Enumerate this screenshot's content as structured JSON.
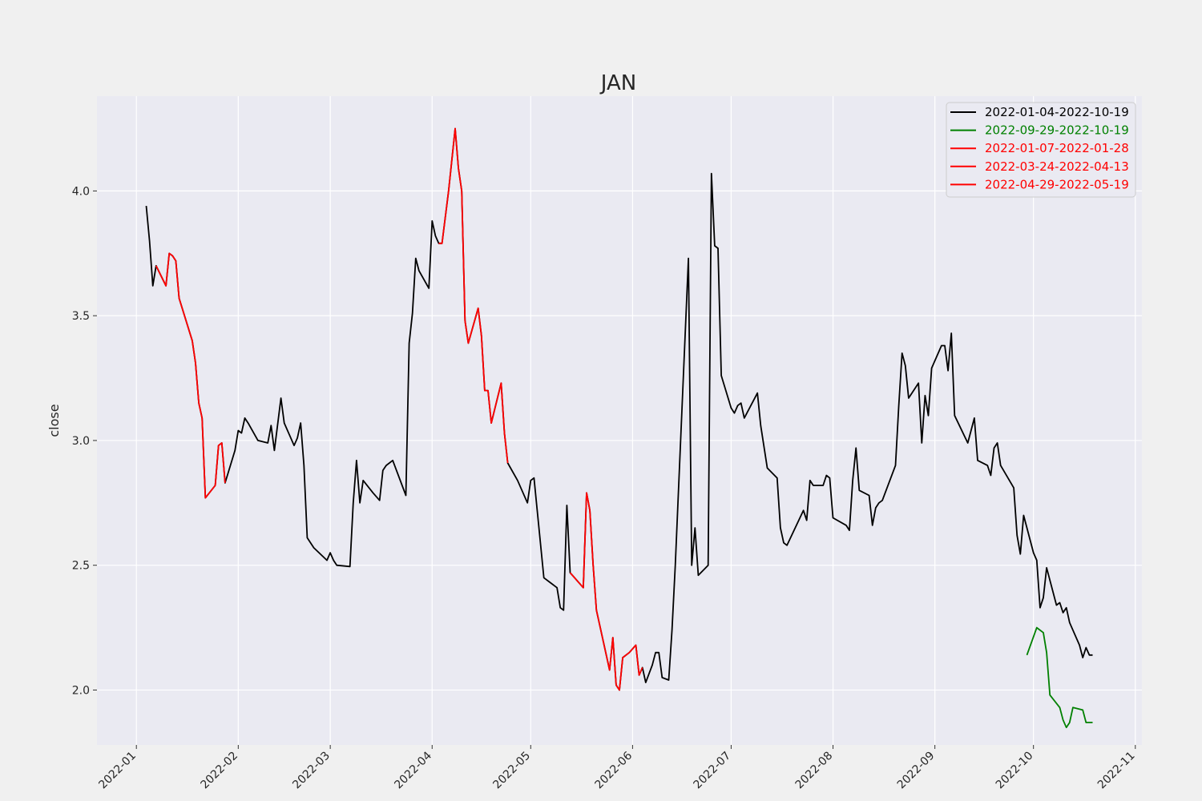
{
  "chart_data": {
    "type": "line",
    "title": "JAN",
    "xlabel": "",
    "ylabel": "close",
    "xlim": [
      "2021-12-20",
      "2022-11-03"
    ],
    "ylim": [
      1.78,
      4.38
    ],
    "x_ticks": [
      "2022-01",
      "2022-02",
      "2022-03",
      "2022-04",
      "2022-05",
      "2022-06",
      "2022-07",
      "2022-08",
      "2022-09",
      "2022-10",
      "2022-11"
    ],
    "y_ticks": [
      2.0,
      2.5,
      3.0,
      3.5,
      4.0
    ],
    "grid": true,
    "legend_position": "top-right",
    "colors": {
      "plot_bg": "#eaeaf2",
      "page_bg": "#f0f0f0",
      "grid": "#ffffff",
      "black": "#000000",
      "green": "#008000",
      "red": "#ff0000"
    },
    "series": [
      {
        "name": "2022-01-04-2022-10-19",
        "color": "#000000",
        "points": [
          [
            "2022-01-04",
            3.94
          ],
          [
            "2022-01-05",
            3.8
          ],
          [
            "2022-01-06",
            3.62
          ],
          [
            "2022-01-07",
            3.7
          ],
          [
            "2022-01-10",
            3.62
          ],
          [
            "2022-01-11",
            3.75
          ],
          [
            "2022-01-12",
            3.74
          ],
          [
            "2022-01-13",
            3.72
          ],
          [
            "2022-01-14",
            3.57
          ],
          [
            "2022-01-18",
            3.4
          ],
          [
            "2022-01-19",
            3.31
          ],
          [
            "2022-01-20",
            3.15
          ],
          [
            "2022-01-21",
            3.09
          ],
          [
            "2022-01-22",
            2.77
          ],
          [
            "2022-01-25",
            2.82
          ],
          [
            "2022-01-26",
            2.98
          ],
          [
            "2022-01-27",
            2.99
          ],
          [
            "2022-01-28",
            2.83
          ],
          [
            "2022-01-31",
            2.96
          ],
          [
            "2022-02-01",
            3.04
          ],
          [
            "2022-02-02",
            3.03
          ],
          [
            "2022-02-03",
            3.09
          ],
          [
            "2022-02-04",
            3.07
          ],
          [
            "2022-02-07",
            3.0
          ],
          [
            "2022-02-10",
            2.99
          ],
          [
            "2022-02-11",
            3.06
          ],
          [
            "2022-02-12",
            2.96
          ],
          [
            "2022-02-14",
            3.17
          ],
          [
            "2022-02-15",
            3.07
          ],
          [
            "2022-02-18",
            2.98
          ],
          [
            "2022-02-19",
            3.01
          ],
          [
            "2022-02-20",
            3.07
          ],
          [
            "2022-02-21",
            2.9
          ],
          [
            "2022-02-22",
            2.61
          ],
          [
            "2022-02-24",
            2.57
          ],
          [
            "2022-02-28",
            2.52
          ],
          [
            "2022-03-01",
            2.55
          ],
          [
            "2022-03-02",
            2.52
          ],
          [
            "2022-03-03",
            2.5
          ],
          [
            "2022-03-07",
            2.495
          ],
          [
            "2022-03-08",
            2.75
          ],
          [
            "2022-03-09",
            2.92
          ],
          [
            "2022-03-10",
            2.75
          ],
          [
            "2022-03-11",
            2.84
          ],
          [
            "2022-03-14",
            2.79
          ],
          [
            "2022-03-16",
            2.76
          ],
          [
            "2022-03-17",
            2.88
          ],
          [
            "2022-03-18",
            2.9
          ],
          [
            "2022-03-20",
            2.92
          ],
          [
            "2022-03-24",
            2.78
          ],
          [
            "2022-03-25",
            3.39
          ],
          [
            "2022-03-26",
            3.51
          ],
          [
            "2022-03-27",
            3.73
          ],
          [
            "2022-03-28",
            3.68
          ],
          [
            "2022-03-31",
            3.61
          ],
          [
            "2022-04-01",
            3.88
          ],
          [
            "2022-04-02",
            3.82
          ],
          [
            "2022-04-03",
            3.79
          ],
          [
            "2022-04-04",
            3.79
          ],
          [
            "2022-04-06",
            4.0
          ],
          [
            "2022-04-08",
            4.25
          ],
          [
            "2022-04-09",
            4.09
          ],
          [
            "2022-04-10",
            4.0
          ],
          [
            "2022-04-11",
            3.48
          ],
          [
            "2022-04-12",
            3.39
          ],
          [
            "2022-04-15",
            3.53
          ],
          [
            "2022-04-16",
            3.42
          ],
          [
            "2022-04-17",
            3.2
          ],
          [
            "2022-04-18",
            3.2
          ],
          [
            "2022-04-19",
            3.07
          ],
          [
            "2022-04-22",
            3.23
          ],
          [
            "2022-04-23",
            3.03
          ],
          [
            "2022-04-24",
            2.91
          ],
          [
            "2022-04-27",
            2.84
          ],
          [
            "2022-04-30",
            2.75
          ],
          [
            "2022-05-01",
            2.84
          ],
          [
            "2022-05-02",
            2.85
          ],
          [
            "2022-05-05",
            2.45
          ],
          [
            "2022-05-07",
            2.43
          ],
          [
            "2022-05-09",
            2.41
          ],
          [
            "2022-05-10",
            2.33
          ],
          [
            "2022-05-11",
            2.32
          ],
          [
            "2022-05-12",
            2.74
          ],
          [
            "2022-05-13",
            2.47
          ],
          [
            "2022-05-17",
            2.41
          ],
          [
            "2022-05-18",
            2.79
          ],
          [
            "2022-05-19",
            2.72
          ],
          [
            "2022-05-20",
            2.5
          ],
          [
            "2022-05-21",
            2.32
          ],
          [
            "2022-05-24",
            2.14
          ],
          [
            "2022-05-25",
            2.08
          ],
          [
            "2022-05-26",
            2.21
          ],
          [
            "2022-05-27",
            2.02
          ],
          [
            "2022-05-28",
            2.0
          ],
          [
            "2022-05-29",
            2.13
          ],
          [
            "2022-05-31",
            2.15
          ],
          [
            "2022-06-02",
            2.18
          ],
          [
            "2022-06-03",
            2.06
          ],
          [
            "2022-06-04",
            2.09
          ],
          [
            "2022-06-05",
            2.03
          ],
          [
            "2022-06-07",
            2.1
          ],
          [
            "2022-06-08",
            2.15
          ],
          [
            "2022-06-09",
            2.15
          ],
          [
            "2022-06-10",
            2.05
          ],
          [
            "2022-06-12",
            2.04
          ],
          [
            "2022-06-13",
            2.24
          ],
          [
            "2022-06-14",
            2.5
          ],
          [
            "2022-06-18",
            3.73
          ],
          [
            "2022-06-19",
            2.5
          ],
          [
            "2022-06-20",
            2.65
          ],
          [
            "2022-06-21",
            2.46
          ],
          [
            "2022-06-24",
            2.5
          ],
          [
            "2022-06-25",
            4.07
          ],
          [
            "2022-06-26",
            3.78
          ],
          [
            "2022-06-27",
            3.77
          ],
          [
            "2022-06-28",
            3.26
          ],
          [
            "2022-07-01",
            3.13
          ],
          [
            "2022-07-02",
            3.11
          ],
          [
            "2022-07-03",
            3.14
          ],
          [
            "2022-07-04",
            3.15
          ],
          [
            "2022-07-05",
            3.09
          ],
          [
            "2022-07-09",
            3.19
          ],
          [
            "2022-07-10",
            3.06
          ],
          [
            "2022-07-12",
            2.89
          ],
          [
            "2022-07-15",
            2.85
          ],
          [
            "2022-07-16",
            2.65
          ],
          [
            "2022-07-17",
            2.59
          ],
          [
            "2022-07-18",
            2.58
          ],
          [
            "2022-07-23",
            2.72
          ],
          [
            "2022-07-24",
            2.68
          ],
          [
            "2022-07-25",
            2.84
          ],
          [
            "2022-07-26",
            2.82
          ],
          [
            "2022-07-29",
            2.82
          ],
          [
            "2022-07-30",
            2.86
          ],
          [
            "2022-07-31",
            2.85
          ],
          [
            "2022-08-01",
            2.69
          ],
          [
            "2022-08-05",
            2.66
          ],
          [
            "2022-08-06",
            2.64
          ],
          [
            "2022-08-07",
            2.84
          ],
          [
            "2022-08-08",
            2.97
          ],
          [
            "2022-08-09",
            2.8
          ],
          [
            "2022-08-12",
            2.78
          ],
          [
            "2022-08-13",
            2.66
          ],
          [
            "2022-08-14",
            2.73
          ],
          [
            "2022-08-15",
            2.75
          ],
          [
            "2022-08-16",
            2.76
          ],
          [
            "2022-08-20",
            2.9
          ],
          [
            "2022-08-21",
            3.14
          ],
          [
            "2022-08-22",
            3.35
          ],
          [
            "2022-08-23",
            3.3
          ],
          [
            "2022-08-24",
            3.17
          ],
          [
            "2022-08-27",
            3.23
          ],
          [
            "2022-08-28",
            2.99
          ],
          [
            "2022-08-29",
            3.18
          ],
          [
            "2022-08-30",
            3.1
          ],
          [
            "2022-08-31",
            3.29
          ],
          [
            "2022-09-03",
            3.38
          ],
          [
            "2022-09-04",
            3.38
          ],
          [
            "2022-09-05",
            3.28
          ],
          [
            "2022-09-06",
            3.43
          ],
          [
            "2022-09-07",
            3.1
          ],
          [
            "2022-09-11",
            2.99
          ],
          [
            "2022-09-12",
            3.04
          ],
          [
            "2022-09-13",
            3.09
          ],
          [
            "2022-09-14",
            2.92
          ],
          [
            "2022-09-17",
            2.9
          ],
          [
            "2022-09-18",
            2.86
          ],
          [
            "2022-09-19",
            2.97
          ],
          [
            "2022-09-20",
            2.99
          ],
          [
            "2022-09-21",
            2.9
          ],
          [
            "2022-09-25",
            2.81
          ],
          [
            "2022-09-26",
            2.62
          ],
          [
            "2022-09-27",
            2.545
          ],
          [
            "2022-09-28",
            2.7
          ],
          [
            "2022-10-01",
            2.55
          ],
          [
            "2022-10-02",
            2.52
          ],
          [
            "2022-10-03",
            2.33
          ],
          [
            "2022-10-04",
            2.37
          ],
          [
            "2022-10-05",
            2.49
          ],
          [
            "2022-10-08",
            2.34
          ],
          [
            "2022-10-09",
            2.35
          ],
          [
            "2022-10-10",
            2.31
          ],
          [
            "2022-10-11",
            2.33
          ],
          [
            "2022-10-12",
            2.27
          ],
          [
            "2022-10-15",
            2.18
          ],
          [
            "2022-10-16",
            2.13
          ],
          [
            "2022-10-17",
            2.17
          ],
          [
            "2022-10-18",
            2.14
          ],
          [
            "2022-10-19",
            2.14
          ]
        ]
      },
      {
        "name": "2022-09-29-2022-10-19",
        "color": "#008000",
        "points": [
          [
            "2022-09-29",
            2.14
          ],
          [
            "2022-10-02",
            2.25
          ],
          [
            "2022-10-04",
            2.23
          ],
          [
            "2022-10-05",
            2.15
          ],
          [
            "2022-10-06",
            1.98
          ],
          [
            "2022-10-09",
            1.93
          ],
          [
            "2022-10-10",
            1.88
          ],
          [
            "2022-10-11",
            1.85
          ],
          [
            "2022-10-12",
            1.87
          ],
          [
            "2022-10-13",
            1.93
          ],
          [
            "2022-10-16",
            1.92
          ],
          [
            "2022-10-17",
            1.87
          ],
          [
            "2022-10-19",
            1.87
          ]
        ]
      },
      {
        "name": "2022-01-07-2022-01-28",
        "color": "#ff0000",
        "points": [
          [
            "2022-01-07",
            3.7
          ],
          [
            "2022-01-10",
            3.62
          ],
          [
            "2022-01-11",
            3.75
          ],
          [
            "2022-01-12",
            3.74
          ],
          [
            "2022-01-13",
            3.72
          ],
          [
            "2022-01-14",
            3.57
          ],
          [
            "2022-01-18",
            3.4
          ],
          [
            "2022-01-19",
            3.31
          ],
          [
            "2022-01-20",
            3.15
          ],
          [
            "2022-01-21",
            3.09
          ],
          [
            "2022-01-22",
            2.77
          ],
          [
            "2022-01-25",
            2.82
          ],
          [
            "2022-01-26",
            2.98
          ],
          [
            "2022-01-27",
            2.99
          ],
          [
            "2022-01-28",
            2.83
          ]
        ]
      },
      {
        "name": "2022-03-24-2022-04-13",
        "color": "#ff0000",
        "points": [
          [
            "2022-04-03",
            3.79
          ],
          [
            "2022-04-04",
            3.79
          ],
          [
            "2022-04-06",
            4.0
          ],
          [
            "2022-04-08",
            4.25
          ],
          [
            "2022-04-09",
            4.09
          ],
          [
            "2022-04-10",
            4.0
          ],
          [
            "2022-04-11",
            3.48
          ],
          [
            "2022-04-12",
            3.39
          ],
          [
            "2022-04-15",
            3.53
          ],
          [
            "2022-04-16",
            3.42
          ],
          [
            "2022-04-17",
            3.2
          ],
          [
            "2022-04-18",
            3.2
          ],
          [
            "2022-04-19",
            3.07
          ],
          [
            "2022-04-22",
            3.23
          ],
          [
            "2022-04-23",
            3.03
          ],
          [
            "2022-04-24",
            2.91
          ]
        ]
      },
      {
        "name": "2022-04-29-2022-05-19",
        "color": "#ff0000",
        "points": [
          [
            "2022-05-13",
            2.47
          ],
          [
            "2022-05-17",
            2.41
          ],
          [
            "2022-05-18",
            2.79
          ],
          [
            "2022-05-19",
            2.72
          ],
          [
            "2022-05-20",
            2.5
          ],
          [
            "2022-05-21",
            2.32
          ],
          [
            "2022-05-24",
            2.14
          ],
          [
            "2022-05-25",
            2.08
          ],
          [
            "2022-05-26",
            2.21
          ],
          [
            "2022-05-27",
            2.02
          ],
          [
            "2022-05-28",
            2.0
          ],
          [
            "2022-05-29",
            2.13
          ],
          [
            "2022-05-31",
            2.15
          ],
          [
            "2022-06-02",
            2.18
          ],
          [
            "2022-06-03",
            2.06
          ],
          [
            "2022-06-04",
            2.09
          ]
        ]
      }
    ]
  }
}
